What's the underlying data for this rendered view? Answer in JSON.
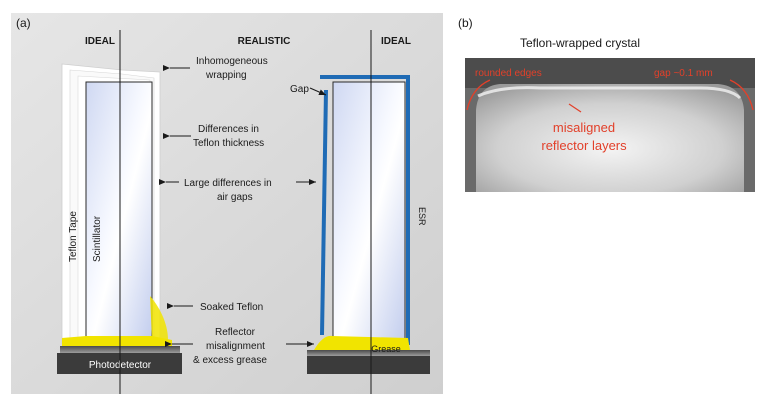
{
  "panel_a": {
    "label": "(a)",
    "ideal_left": "IDEAL",
    "realistic": "REALISTIC",
    "ideal_right": "IDEAL",
    "teflon_tape": "Teflon Tape",
    "scintillator": "Scintillator",
    "photodetector": "Photodetector",
    "gap": "Gap",
    "esr": "ESR",
    "grease": "Grease",
    "annotations": {
      "inhomogeneous_1": "Inhomogeneous",
      "inhomogeneous_2": "wrapping",
      "differences_1": "Differences in",
      "differences_2": "Teflon thickness",
      "large_1": "Large differences in",
      "large_2": "air gaps",
      "soaked": "Soaked Teflon",
      "reflector_1": "Reflector",
      "reflector_2": "misalignment",
      "reflector_3": "& excess grease"
    },
    "colors": {
      "panel_bg": "#dadada",
      "esr_blue": "#1f6bb5",
      "grease_yellow": "#f1e400",
      "detector": "#3b3b3b"
    }
  },
  "panel_b": {
    "label": "(b)",
    "title": "Teflon-wrapped crystal",
    "rounded_edges": "rounded edges",
    "gap_label": "gap ~0.1 mm",
    "misaligned_1": "misaligned",
    "misaligned_2": "reflector layers",
    "colors": {
      "annotation_red": "#e2402a"
    }
  }
}
